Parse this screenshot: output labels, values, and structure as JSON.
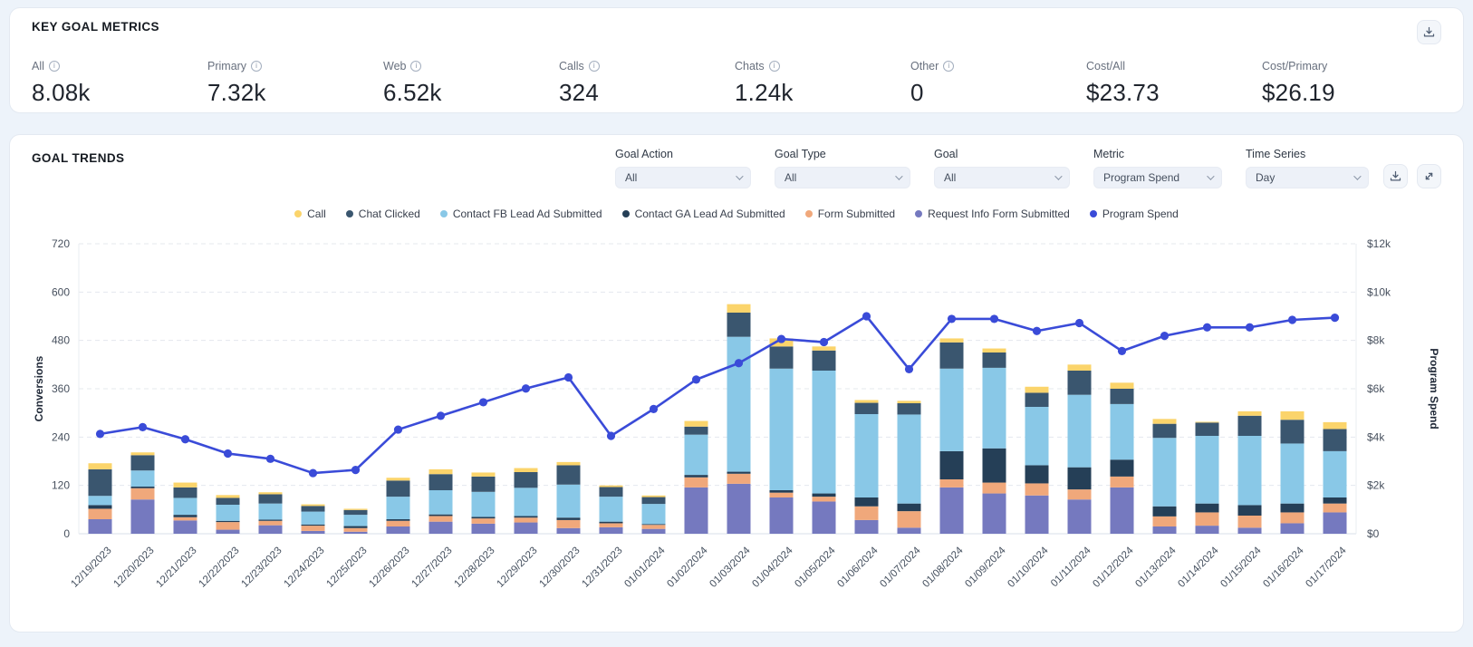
{
  "key_goal_metrics": {
    "title": "KEY GOAL METRICS",
    "metrics": [
      {
        "label": "All",
        "value": "8.08k",
        "info": true
      },
      {
        "label": "Primary",
        "value": "7.32k",
        "info": true
      },
      {
        "label": "Web",
        "value": "6.52k",
        "info": true
      },
      {
        "label": "Calls",
        "value": "324",
        "info": true
      },
      {
        "label": "Chats",
        "value": "1.24k",
        "info": true
      },
      {
        "label": "Other",
        "value": "0",
        "info": true
      },
      {
        "label": "Cost/All",
        "value": "$23.73",
        "info": false
      },
      {
        "label": "Cost/Primary",
        "value": "$26.19",
        "info": false
      }
    ]
  },
  "goal_trends": {
    "title": "GOAL TRENDS",
    "filters": [
      {
        "label": "Goal Action",
        "value": "All"
      },
      {
        "label": "Goal Type",
        "value": "All"
      },
      {
        "label": "Goal",
        "value": "All"
      },
      {
        "label": "Metric",
        "value": "Program Spend"
      },
      {
        "label": "Time Series",
        "value": "Day"
      }
    ]
  },
  "chart_data": {
    "type": "stacked-bar+line",
    "title": "Goal Trends",
    "grid": "dashed horizontal",
    "legend_position": "top-center",
    "categories": [
      "12/19/2023",
      "12/20/2023",
      "12/21/2023",
      "12/22/2023",
      "12/23/2023",
      "12/24/2023",
      "12/25/2023",
      "12/26/2023",
      "12/27/2023",
      "12/28/2023",
      "12/29/2023",
      "12/30/2023",
      "12/31/2023",
      "01/01/2024",
      "01/02/2024",
      "01/03/2024",
      "01/04/2024",
      "01/05/2024",
      "01/06/2024",
      "01/07/2024",
      "01/08/2024",
      "01/09/2024",
      "01/10/2024",
      "01/11/2024",
      "01/12/2024",
      "01/13/2024",
      "01/14/2024",
      "01/15/2024",
      "01/16/2024",
      "01/17/2024"
    ],
    "bar_series": [
      {
        "name": "Request Info Form Submitted",
        "color": "#7579BF",
        "values": [
          36,
          85,
          33,
          10,
          21,
          7,
          5,
          18,
          30,
          25,
          28,
          14,
          16,
          12,
          115,
          124,
          90,
          80,
          34,
          15,
          115,
          100,
          95,
          85,
          115,
          18,
          20,
          15,
          26,
          53
        ]
      },
      {
        "name": "Form Submitted",
        "color": "#F0A87B",
        "values": [
          26,
          28,
          8,
          19,
          11,
          13,
          9,
          14,
          14,
          13,
          12,
          20,
          10,
          10,
          25,
          25,
          12,
          12,
          34,
          41,
          20,
          27,
          30,
          25,
          27,
          25,
          33,
          30,
          27,
          22
        ]
      },
      {
        "name": "Contact GA Lead Ad Submitted",
        "color": "#253F57",
        "values": [
          9,
          4,
          6,
          3,
          3,
          3,
          5,
          4,
          4,
          4,
          4,
          6,
          4,
          2,
          6,
          5,
          6,
          8,
          22,
          19,
          70,
          85,
          45,
          55,
          42,
          25,
          22,
          26,
          22,
          15
        ]
      },
      {
        "name": "Contact FB Lead Ad Submitted",
        "color": "#89C8E7",
        "values": [
          23,
          40,
          42,
          40,
          40,
          32,
          28,
          56,
          60,
          62,
          70,
          82,
          62,
          50,
          100,
          335,
          302,
          305,
          207,
          221,
          205,
          200,
          145,
          180,
          138,
          170,
          168,
          172,
          149,
          115
        ]
      },
      {
        "name": "Chat Clicked",
        "color": "#3A566F",
        "values": [
          66,
          38,
          26,
          17,
          23,
          14,
          12,
          40,
          40,
          38,
          39,
          48,
          24,
          17,
          20,
          60,
          55,
          50,
          28,
          28,
          65,
          38,
          35,
          60,
          38,
          35,
          33,
          50,
          59,
          55
        ]
      },
      {
        "name": "Call",
        "color": "#FBD46B",
        "values": [
          15,
          7,
          12,
          7,
          5,
          4,
          3,
          7,
          12,
          10,
          10,
          8,
          4,
          4,
          14,
          21,
          20,
          10,
          7,
          6,
          10,
          10,
          15,
          15,
          15,
          12,
          2,
          11,
          21,
          17
        ]
      }
    ],
    "line_series": {
      "name": "Program Spend",
      "color": "#3A4BD8",
      "values": [
        4130,
        4410,
        3910,
        3320,
        3100,
        2510,
        2640,
        4310,
        4880,
        5440,
        6010,
        6470,
        4050,
        5160,
        6380,
        7060,
        8060,
        7930,
        9000,
        6810,
        8890,
        8890,
        8390,
        8720,
        7560,
        8190,
        8540,
        8540,
        8850,
        8940
      ]
    },
    "legend_order": [
      "Call",
      "Chat Clicked",
      "Contact FB Lead Ad Submitted",
      "Contact GA Lead Ad Submitted",
      "Form Submitted",
      "Request Info Form Submitted",
      "Program Spend"
    ],
    "left_axis": {
      "title": "Conversions",
      "min": 0,
      "max": 720,
      "ticks": [
        0,
        120,
        240,
        360,
        480,
        600,
        720
      ]
    },
    "right_axis": {
      "title": "Program Spend",
      "min": 0,
      "max": 12000,
      "ticks": [
        0,
        2000,
        4000,
        6000,
        8000,
        10000,
        12000
      ],
      "tick_labels": [
        "$0",
        "$2k",
        "$4k",
        "$6k",
        "$8k",
        "$10k",
        "$12k"
      ]
    }
  }
}
